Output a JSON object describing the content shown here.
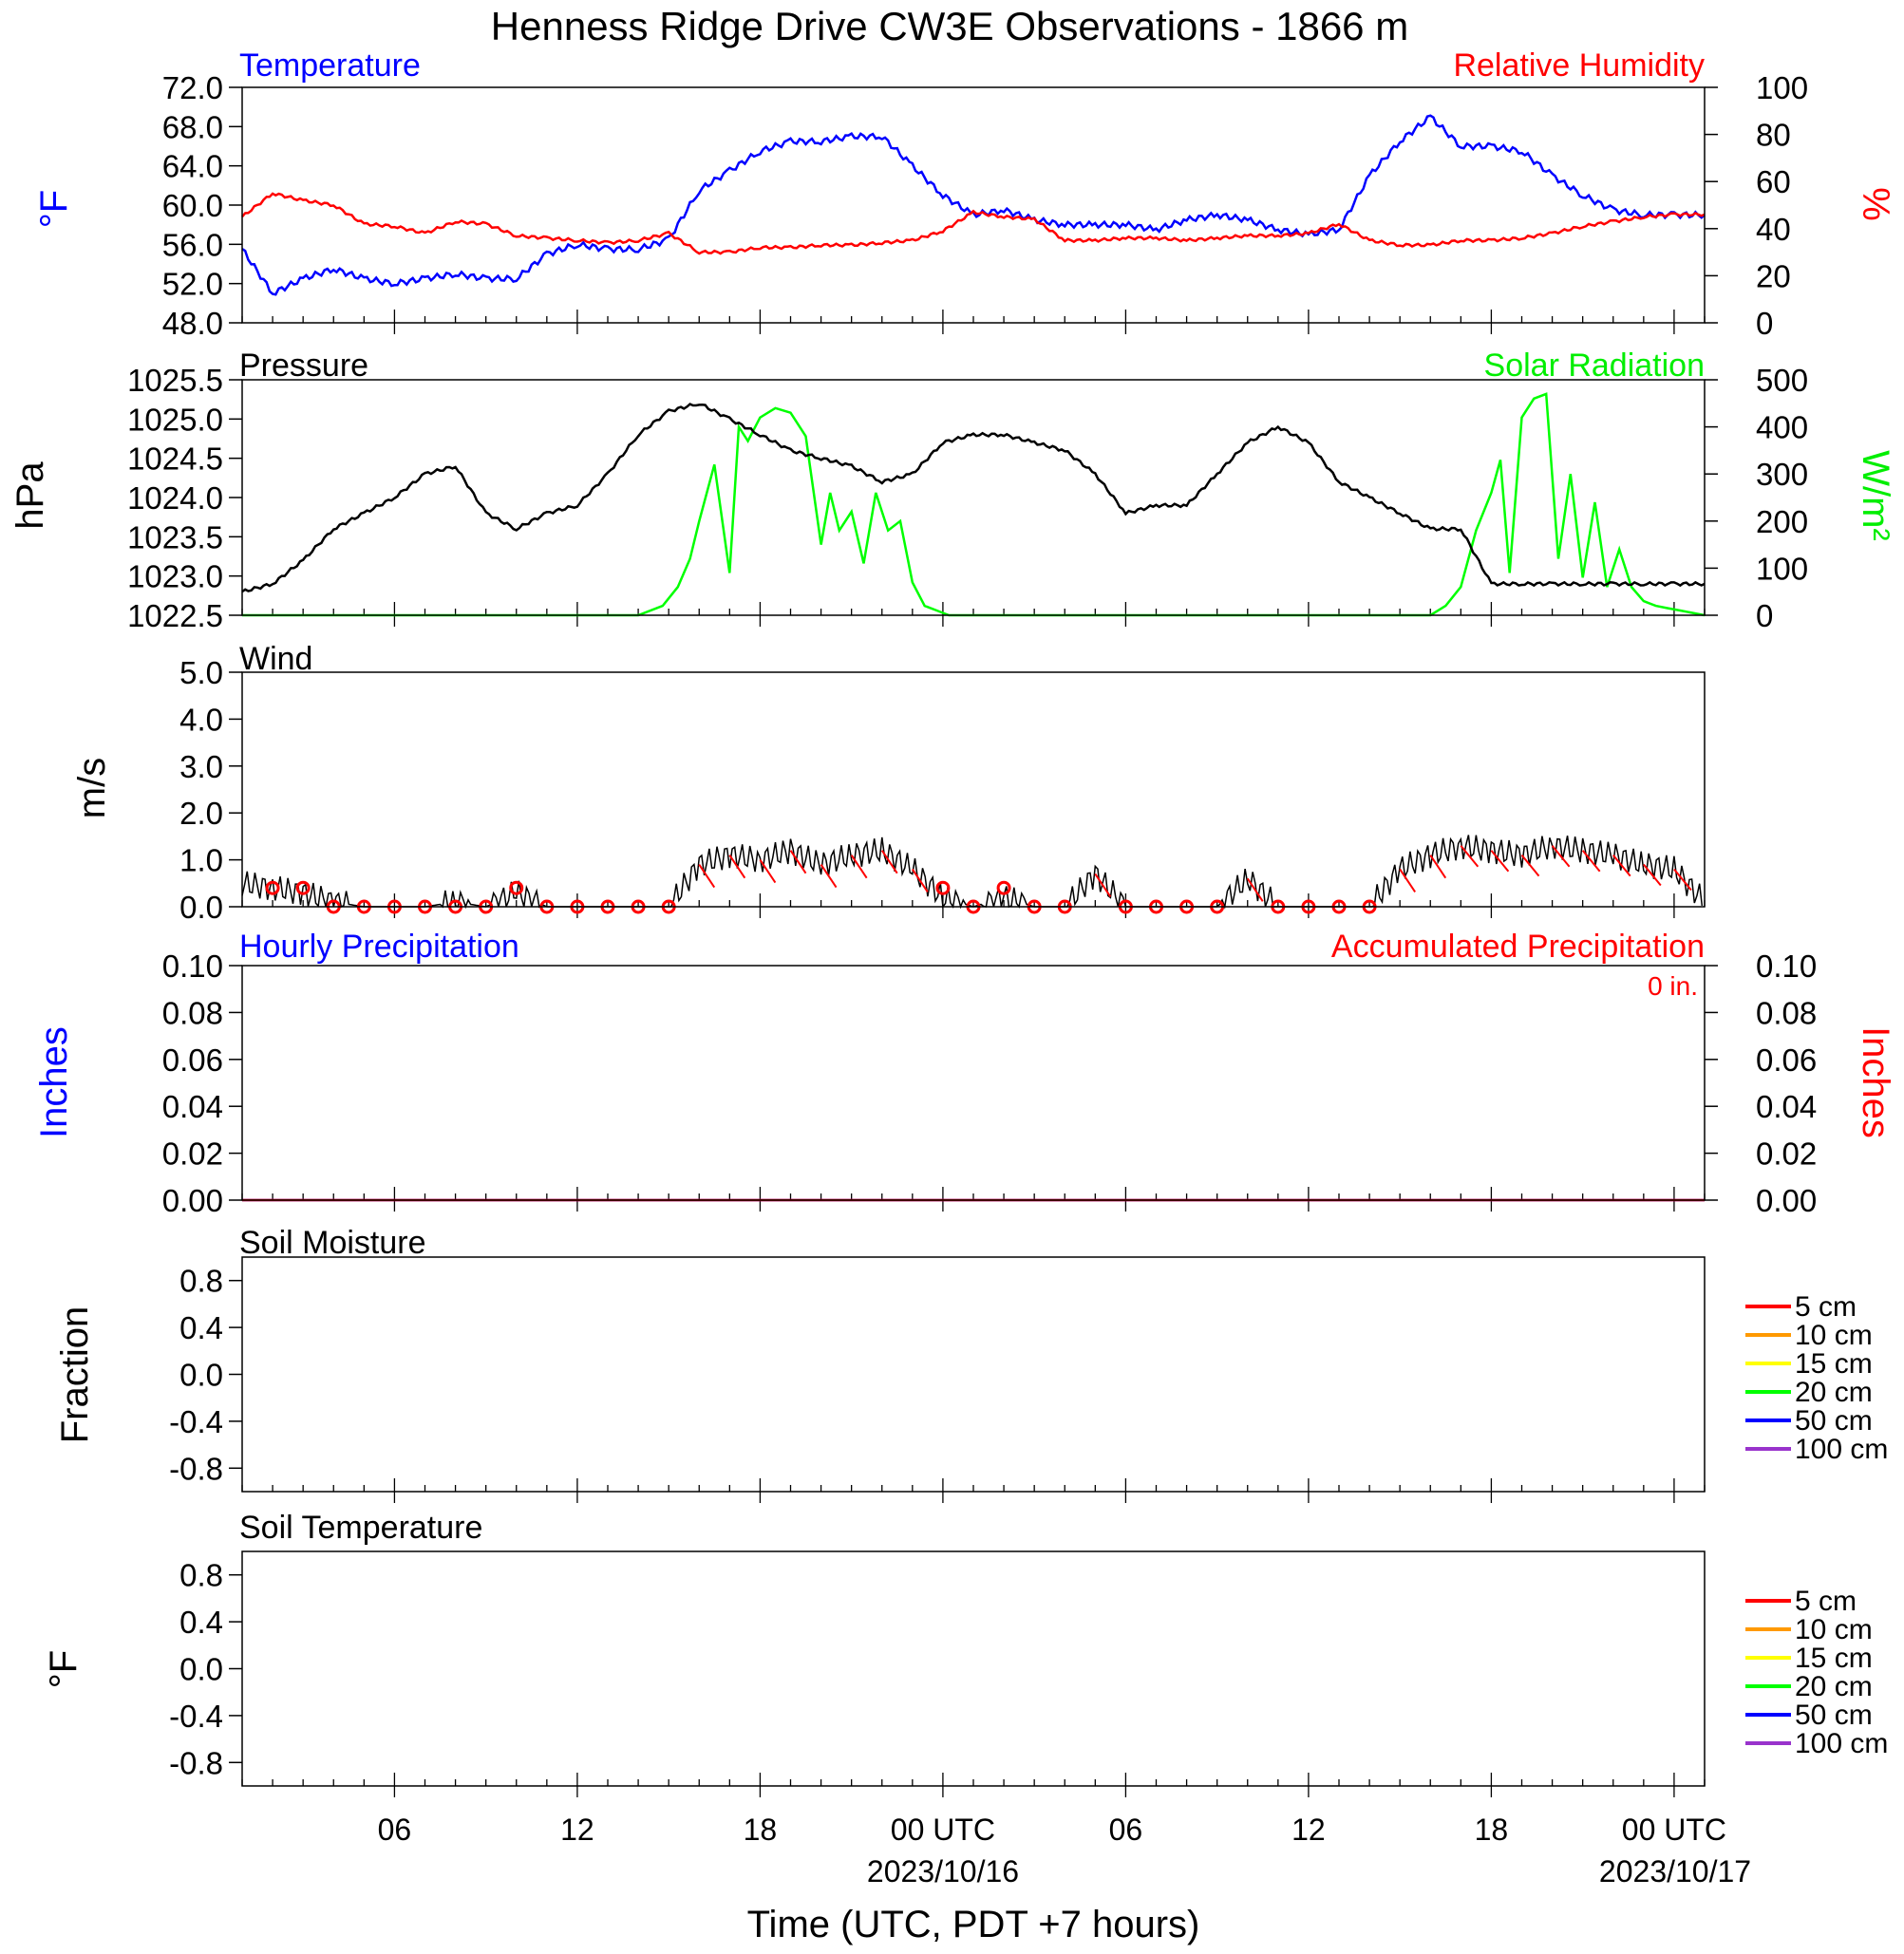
{
  "title": "Henness Ridge Drive CW3E Observations - 1866 m",
  "xlabel": "Time (UTC, PDT +7 hours)",
  "x_ticks": [
    "06",
    "12",
    "18",
    "00 UTC",
    "06",
    "12",
    "18",
    "00 UTC"
  ],
  "x_tick_hours": [
    6,
    12,
    18,
    24,
    30,
    36,
    42,
    48
  ],
  "x_dates": [
    "2023/10/16",
    "2023/10/17"
  ],
  "x_range_hours": [
    1,
    49
  ],
  "colors": {
    "temperature": "#0000ff",
    "humidity": "#ff0000",
    "pressure": "#000000",
    "solar": "#00ff00",
    "wind": "#000000",
    "wind_barb": "#ff0000",
    "precip_hourly": "#0000ff",
    "precip_accum": "#ff0000",
    "soil_5": "#ff0000",
    "soil_10": "#ff9900",
    "soil_15": "#ffff00",
    "soil_20": "#00ff00",
    "soil_50": "#0000ff",
    "soil_100": "#9933cc"
  },
  "panels": {
    "temp_rh": {
      "left_title": "Temperature",
      "right_title": "Relative Humidity",
      "left_ylabel": "oF",
      "right_ylabel": "%",
      "left_ticks": [
        "72.0",
        "68.0",
        "64.0",
        "60.0",
        "56.0",
        "52.0",
        "48.0"
      ],
      "right_ticks": [
        "100",
        "80",
        "60",
        "40",
        "20",
        "0"
      ]
    },
    "pressure_solar": {
      "left_title": "Pressure",
      "right_title": "Solar Radiation",
      "left_ylabel": "hPa",
      "right_ylabel": "W/m2",
      "left_ticks": [
        "1025.5",
        "1025.0",
        "1024.5",
        "1024.0",
        "1023.5",
        "1023.0",
        "1022.5"
      ],
      "right_ticks": [
        "500",
        "400",
        "300",
        "200",
        "100",
        "0"
      ]
    },
    "wind": {
      "left_title": "Wind",
      "left_ylabel": "m/s",
      "left_ticks": [
        "5.0",
        "4.0",
        "3.0",
        "2.0",
        "1.0",
        "0.0"
      ]
    },
    "precip": {
      "left_title": "Hourly Precipitation",
      "right_title": "Accumulated Precipitation",
      "total_label": "0 in.",
      "left_ylabel": "Inches",
      "right_ylabel": "Inches",
      "left_ticks": [
        "0.10",
        "0.08",
        "0.06",
        "0.04",
        "0.02",
        "0.00"
      ],
      "right_ticks": [
        "0.10",
        "0.08",
        "0.06",
        "0.04",
        "0.02",
        "0.00"
      ]
    },
    "soil_moisture": {
      "left_title": "Soil Moisture",
      "left_ylabel": "Fraction",
      "left_ticks": [
        "0.8",
        "0.4",
        "0.0",
        "-0.4",
        "-0.8"
      ],
      "legend": [
        "5 cm",
        "10 cm",
        "15 cm",
        "20 cm",
        "50 cm",
        "100 cm"
      ]
    },
    "soil_temperature": {
      "left_title": "Soil Temperature",
      "left_ylabel": "oF",
      "left_ticks": [
        "0.8",
        "0.4",
        "0.0",
        "-0.4",
        "-0.8"
      ],
      "legend": [
        "5 cm",
        "10 cm",
        "15 cm",
        "20 cm",
        "50 cm",
        "100 cm"
      ]
    }
  },
  "chart_data": [
    {
      "type": "line",
      "panel": "temp_rh",
      "xunit": "hours since 2023/10/15 00 UTC",
      "ylim": [
        48,
        72
      ],
      "y2lim": [
        0,
        100
      ],
      "series": [
        {
          "name": "Temperature",
          "axis": "left",
          "color": "#0000ff",
          "x": [
            1,
            2,
            3,
            4,
            5,
            6,
            7,
            8,
            9,
            10,
            11,
            12,
            13,
            14,
            15,
            16,
            17,
            18,
            19,
            20,
            21,
            22,
            23,
            24,
            25,
            26,
            27,
            28,
            29,
            30,
            31,
            32,
            33,
            34,
            35,
            36,
            37,
            38,
            39,
            40,
            41,
            42,
            43,
            44,
            45,
            46,
            47,
            48,
            49
          ],
          "values": [
            55.5,
            51.0,
            52.5,
            53.5,
            52.5,
            52.0,
            52.5,
            53.0,
            52.5,
            52.5,
            55.0,
            56.0,
            55.5,
            55.5,
            56.5,
            61.5,
            63.5,
            65.5,
            66.5,
            66.5,
            67.0,
            67.0,
            64.0,
            61.0,
            59.0,
            59.5,
            58.5,
            58.0,
            58.0,
            58.0,
            57.5,
            58.5,
            59.0,
            58.5,
            57.5,
            57.0,
            57.5,
            63.0,
            66.5,
            69.0,
            66.0,
            66.0,
            65.5,
            63.0,
            61.0,
            59.5,
            59.0,
            59.0,
            59.0
          ]
        },
        {
          "name": "Relative Humidity",
          "axis": "right",
          "color": "#ff0000",
          "x": [
            1,
            2,
            3,
            4,
            5,
            6,
            7,
            8,
            9,
            10,
            11,
            12,
            13,
            14,
            15,
            16,
            17,
            18,
            19,
            20,
            21,
            22,
            23,
            24,
            25,
            26,
            27,
            28,
            29,
            30,
            31,
            32,
            33,
            34,
            35,
            36,
            37,
            38,
            39,
            40,
            41,
            42,
            43,
            44,
            45,
            46,
            47,
            48,
            49
          ],
          "values": [
            45,
            55,
            52,
            50,
            42,
            41,
            38,
            43,
            42,
            37,
            36,
            35,
            34,
            35,
            38,
            30,
            30,
            32,
            32,
            33,
            33,
            34,
            35,
            39,
            47,
            45,
            44,
            35,
            35,
            36,
            36,
            35,
            36,
            37,
            37,
            38,
            42,
            35,
            33,
            33,
            35,
            35,
            36,
            38,
            41,
            43,
            45,
            46,
            46
          ]
        }
      ]
    },
    {
      "type": "line",
      "panel": "pressure_solar",
      "ylim": [
        1022.5,
        1025.5
      ],
      "y2lim": [
        0,
        500
      ],
      "series": [
        {
          "name": "Pressure",
          "axis": "left",
          "color": "#000000",
          "x": [
            1,
            2,
            3,
            4,
            5,
            6,
            7,
            8,
            9,
            10,
            11,
            12,
            13,
            14,
            15,
            16,
            17,
            18,
            19,
            20,
            21,
            22,
            23,
            24,
            25,
            26,
            27,
            28,
            29,
            30,
            31,
            32,
            33,
            34,
            35,
            36,
            37,
            38,
            39,
            40,
            41,
            42,
            43,
            44,
            45,
            46,
            47,
            48,
            49
          ],
          "values": [
            1022.8,
            1022.9,
            1023.2,
            1023.6,
            1023.8,
            1024.0,
            1024.3,
            1024.4,
            1023.8,
            1023.6,
            1023.8,
            1023.9,
            1024.3,
            1024.8,
            1025.1,
            1025.2,
            1025.0,
            1024.8,
            1024.6,
            1024.5,
            1024.4,
            1024.2,
            1024.3,
            1024.7,
            1024.8,
            1024.8,
            1024.7,
            1024.6,
            1024.3,
            1023.8,
            1023.9,
            1023.9,
            1024.3,
            1024.7,
            1024.9,
            1024.7,
            1024.2,
            1024.0,
            1023.8,
            1023.6,
            1023.6,
            1022.9,
            1022.9,
            1022.9,
            1022.9,
            1022.9,
            1022.9,
            1022.9,
            1022.9
          ]
        },
        {
          "name": "Solar Radiation",
          "axis": "right",
          "color": "#00ff00",
          "x": [
            1,
            14,
            14.8,
            15.3,
            15.7,
            16,
            16.5,
            17,
            17.3,
            17.6,
            18,
            18.5,
            19,
            19.5,
            20,
            20.3,
            20.6,
            21,
            21.4,
            21.8,
            22.2,
            22.6,
            23,
            23.4,
            23.8,
            24.2,
            40,
            40.5,
            41,
            41.5,
            42,
            42.3,
            42.6,
            43,
            43.4,
            43.8,
            44.2,
            44.6,
            45,
            45.4,
            45.8,
            46.2,
            46.6,
            47,
            47.4,
            47.8,
            48.2,
            48.6,
            49
          ],
          "values": [
            0,
            0,
            20,
            60,
            120,
            200,
            320,
            90,
            400,
            370,
            420,
            440,
            430,
            380,
            150,
            260,
            180,
            220,
            110,
            260,
            180,
            200,
            70,
            20,
            10,
            0,
            0,
            20,
            60,
            180,
            260,
            330,
            90,
            420,
            460,
            470,
            120,
            300,
            80,
            240,
            60,
            140,
            60,
            30,
            20,
            15,
            10,
            5,
            0
          ]
        }
      ]
    },
    {
      "type": "line",
      "panel": "wind",
      "ylim": [
        0,
        5
      ],
      "series": [
        {
          "name": "Wind",
          "color": "#000000",
          "x": [
            1,
            2,
            3,
            4,
            5,
            6,
            7,
            8,
            9,
            10,
            11,
            12,
            13,
            14,
            15,
            16,
            17,
            18,
            19,
            20,
            21,
            22,
            23,
            24,
            25,
            26,
            27,
            28,
            29,
            30,
            31,
            32,
            33,
            34,
            35,
            36,
            37,
            38,
            39,
            40,
            41,
            42,
            43,
            44,
            45,
            46,
            47,
            48,
            49
          ],
          "values": [
            0.5,
            0.4,
            0.3,
            0.1,
            0.0,
            0.0,
            0.0,
            0.1,
            0.0,
            0.3,
            0.0,
            0.0,
            0.0,
            0.0,
            0.0,
            0.9,
            1.1,
            1.0,
            1.2,
            0.9,
            1.1,
            1.2,
            0.8,
            0.2,
            0.0,
            0.2,
            0.0,
            0.0,
            0.7,
            0.0,
            0.0,
            0.0,
            0.0,
            0.6,
            0.0,
            0.0,
            0.0,
            0.0,
            0.8,
            1.1,
            1.3,
            1.2,
            1.1,
            1.3,
            1.2,
            1.1,
            0.9,
            0.8,
            0.1
          ]
        }
      ]
    },
    {
      "type": "line",
      "panel": "precip",
      "ylim": [
        0,
        0.1
      ],
      "y2lim": [
        0,
        0.1
      ],
      "series": [
        {
          "name": "Hourly Precipitation",
          "color": "#0000ff",
          "x": [
            1,
            49
          ],
          "values": [
            0,
            0
          ]
        },
        {
          "name": "Accumulated Precipitation",
          "color": "#ff0000",
          "x": [
            1,
            49
          ],
          "values": [
            0,
            0
          ]
        }
      ]
    },
    {
      "type": "line",
      "panel": "soil_moisture",
      "ylim": [
        -1,
        1
      ],
      "series": [
        {
          "name": "5 cm",
          "color": "#ff0000",
          "values": []
        },
        {
          "name": "10 cm",
          "color": "#ff9900",
          "values": []
        },
        {
          "name": "15 cm",
          "color": "#ffff00",
          "values": []
        },
        {
          "name": "20 cm",
          "color": "#00ff00",
          "values": []
        },
        {
          "name": "50 cm",
          "color": "#0000ff",
          "values": []
        },
        {
          "name": "100 cm",
          "color": "#9933cc",
          "values": []
        }
      ]
    },
    {
      "type": "line",
      "panel": "soil_temperature",
      "ylim": [
        -1,
        1
      ],
      "series": [
        {
          "name": "5 cm",
          "color": "#ff0000",
          "values": []
        },
        {
          "name": "10 cm",
          "color": "#ff9900",
          "values": []
        },
        {
          "name": "15 cm",
          "color": "#ffff00",
          "values": []
        },
        {
          "name": "20 cm",
          "color": "#00ff00",
          "values": []
        },
        {
          "name": "50 cm",
          "color": "#0000ff",
          "values": []
        },
        {
          "name": "100 cm",
          "color": "#9933cc",
          "values": []
        }
      ]
    }
  ]
}
